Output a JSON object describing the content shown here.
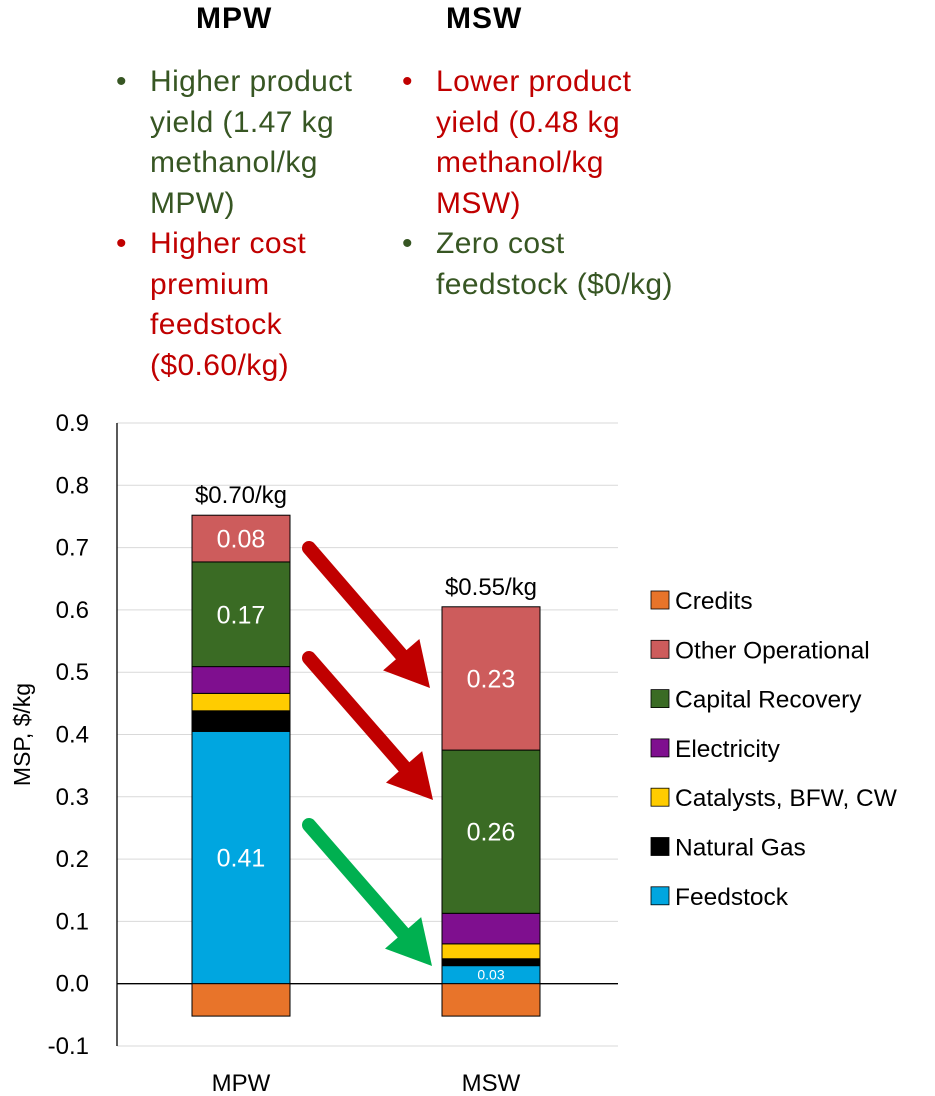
{
  "columns": [
    {
      "title": "MPW",
      "notes": [
        {
          "text": "Higher product yield (1.47 kg methanol/kg MPW)",
          "color": "#375623"
        },
        {
          "text": "Higher cost premium feedstock ($0.60/kg)",
          "color": "#C00000"
        }
      ]
    },
    {
      "title": "MSW",
      "notes": [
        {
          "text": "Lower product yield (0.48 kg methanol/kg MSW)",
          "color": "#C00000"
        },
        {
          "text": "Zero cost feedstock ($0/kg)",
          "color": "#375623"
        }
      ]
    }
  ],
  "colors": {
    "green_text": "#375623",
    "red_text": "#C00000",
    "arrow_red": "#C00000",
    "arrow_green": "#00B050"
  },
  "chart_data": {
    "type": "bar",
    "stacked": true,
    "categories": [
      "MPW",
      "MSW"
    ],
    "ylabel": "MSP, $/kg",
    "ylim": [
      -0.1,
      0.9
    ],
    "yticks": [
      "-0.1",
      "0.0",
      "0.1",
      "0.2",
      "0.3",
      "0.4",
      "0.5",
      "0.6",
      "0.7",
      "0.8",
      "0.9"
    ],
    "grid": true,
    "legend_position": "right",
    "series": [
      {
        "name": "Feedstock",
        "color": "#00A6E0",
        "values": [
          0.405,
          0.029
        ]
      },
      {
        "name": "Natural Gas",
        "color": "#000000",
        "values": [
          0.033,
          0.011
        ]
      },
      {
        "name": "Catalysts, BFW, CW",
        "color": "#FFCC00",
        "values": [
          0.028,
          0.024
        ]
      },
      {
        "name": "Electricity",
        "color": "#7F0F8F",
        "values": [
          0.043,
          0.049
        ]
      },
      {
        "name": "Capital Recovery",
        "color": "#3A6B24",
        "values": [
          0.168,
          0.262
        ]
      },
      {
        "name": "Other Operational",
        "color": "#CD5C5C",
        "values": [
          0.075,
          0.23
        ]
      },
      {
        "name": "Credits",
        "color": "#E8742A",
        "values": [
          -0.052,
          -0.052
        ]
      }
    ],
    "legend_order": [
      "Credits",
      "Other Operational",
      "Capital Recovery",
      "Electricity",
      "Catalysts, BFW, CW",
      "Natural Gas",
      "Feedstock"
    ],
    "segment_labels": [
      {
        "category": "MPW",
        "series": "Other Operational",
        "text": "0.08"
      },
      {
        "category": "MPW",
        "series": "Capital Recovery",
        "text": "0.17"
      },
      {
        "category": "MPW",
        "series": "Feedstock",
        "text": "0.41"
      },
      {
        "category": "MSW",
        "series": "Other Operational",
        "text": "0.23"
      },
      {
        "category": "MSW",
        "series": "Capital Recovery",
        "text": "0.26"
      },
      {
        "category": "MSW",
        "series": "Feedstock",
        "text": "0.03",
        "small": true
      }
    ],
    "total_labels": [
      "$0.70/kg",
      "$0.55/kg"
    ]
  }
}
